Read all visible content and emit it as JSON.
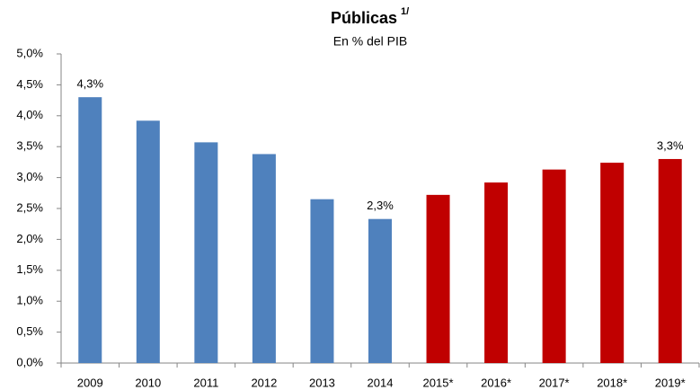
{
  "chart_data": {
    "type": "bar",
    "title": "Públicas",
    "title_note": "1/",
    "subtitle": "En % del PIB",
    "categories": [
      "2009",
      "2010",
      "2011",
      "2012",
      "2013",
      "2014",
      "2015*",
      "2016*",
      "2017*",
      "2018*",
      "2019*"
    ],
    "values": [
      4.3,
      3.92,
      3.57,
      3.38,
      2.65,
      2.33,
      2.72,
      2.92,
      3.13,
      3.24,
      3.3
    ],
    "value_labels": [
      "4,3%",
      null,
      null,
      null,
      null,
      "2,3%",
      null,
      null,
      null,
      null,
      "3,3%"
    ],
    "colors": [
      "#4f81bd",
      "#4f81bd",
      "#4f81bd",
      "#4f81bd",
      "#4f81bd",
      "#4f81bd",
      "#c00000",
      "#c00000",
      "#c00000",
      "#c00000",
      "#c00000"
    ],
    "ylim": [
      0,
      5
    ],
    "yticks": [
      {
        "value": 0,
        "label": "0,0%"
      },
      {
        "value": 0.5,
        "label": "0,5%"
      },
      {
        "value": 1,
        "label": "1,0%"
      },
      {
        "value": 1.5,
        "label": "1,5%"
      },
      {
        "value": 2,
        "label": "2,0%"
      },
      {
        "value": 2.5,
        "label": "2,5%"
      },
      {
        "value": 3,
        "label": "3,0%"
      },
      {
        "value": 3.5,
        "label": "3,5%"
      },
      {
        "value": 4,
        "label": "4,0%"
      },
      {
        "value": 4.5,
        "label": "4,5%"
      },
      {
        "value": 5,
        "label": "5,0%"
      }
    ],
    "grid": false
  }
}
